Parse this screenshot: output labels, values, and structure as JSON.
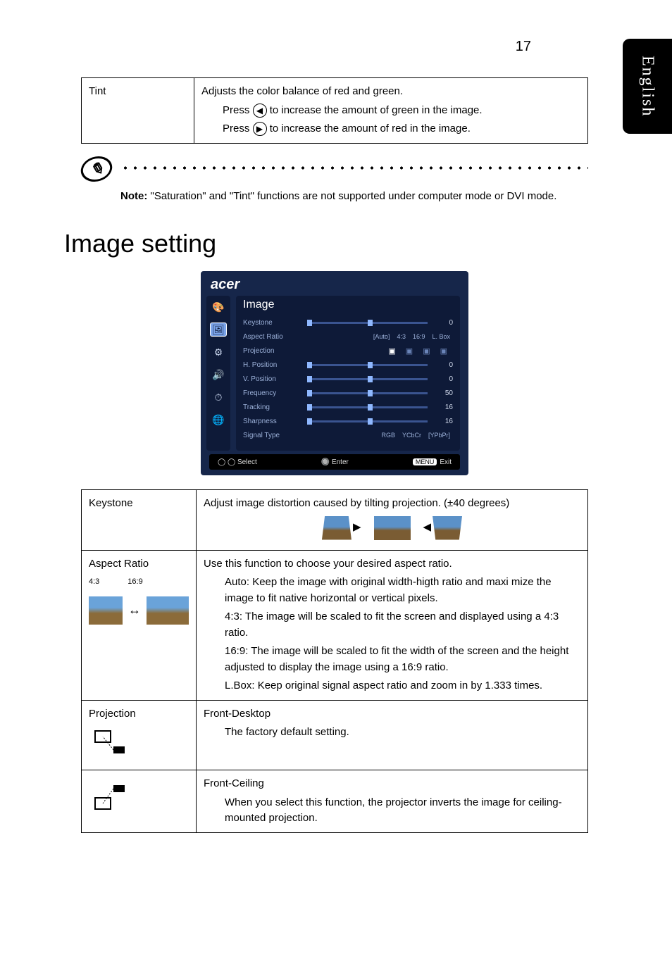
{
  "page_number": "17",
  "side_tab": "English",
  "tint_table": {
    "left": "Tint",
    "line1": "Adjusts the color balance of red and green.",
    "line2a": "Press ",
    "line2b": " to increase the amount of green in the image.",
    "line3a": "Press ",
    "line3b": " to increase the amount of red in the image."
  },
  "arrows": {
    "left": "◀",
    "right": "▶"
  },
  "note": {
    "label": "Note:",
    "body": " \"Saturation\" and \"Tint\" functions are not supported under computer mode or DVI mode."
  },
  "section_title": "Image setting",
  "osd": {
    "logo": "acer",
    "title": "Image",
    "rows": [
      {
        "lbl": "Keystone",
        "type": "slider",
        "val": "0",
        "pos": 50
      },
      {
        "lbl": "Aspect Ratio",
        "type": "opts",
        "opts": [
          "[Auto]",
          "4:3",
          "16:9",
          "L. Box"
        ]
      },
      {
        "lbl": "Projection",
        "type": "proj"
      },
      {
        "lbl": "H. Position",
        "type": "slider",
        "val": "0",
        "pos": 50
      },
      {
        "lbl": "V. Position",
        "type": "slider",
        "val": "0",
        "pos": 50
      },
      {
        "lbl": "Frequency",
        "type": "slider",
        "val": "50",
        "pos": 50
      },
      {
        "lbl": "Tracking",
        "type": "slider",
        "val": "16",
        "pos": 50
      },
      {
        "lbl": "Sharpness",
        "type": "slider",
        "val": "16",
        "pos": 50
      },
      {
        "lbl": "Signal Type",
        "type": "opts",
        "opts": [
          "RGB",
          "YCbCr",
          "[YPbPr]"
        ]
      }
    ],
    "footer": {
      "select": "Select",
      "enter": "Enter",
      "menu": "MENU",
      "exit": "Exit"
    }
  },
  "keystone_row": {
    "left": "Keystone",
    "text": "Adjust image distortion caused by tilting projection. (±40 degrees)"
  },
  "aspect_row": {
    "left": "Aspect Ratio",
    "sub_left_a": "4:3",
    "sub_left_b": "16:9",
    "line1": "Use this function to choose your desired aspect ratio.",
    "auto_lbl": "Auto: ",
    "auto": "Keep the image with original width-higth ratio and maxi mize the image to fit native horizontal or vertical pixels.",
    "r43_lbl": "4:3: ",
    "r43": "The image will be scaled to fit the screen and displayed using a 4:3 ratio.",
    "r169_lbl": "16:9: ",
    "r169": "The  image will be scaled to fit the width of the screen and the height adjusted to display the image using a 16:9 ratio.",
    "lbox_lbl": "L.Box: ",
    "lbox": "Keep original signal aspect ratio and zoom in by 1.333 times."
  },
  "proj_row": {
    "left": "Projection",
    "fd_title": "Front-Desktop",
    "fd_body": "The factory default setting.",
    "fc_title": "Front-Ceiling",
    "fc_body": "When you select this function, the projector inverts the image for ceiling-mounted projection."
  }
}
